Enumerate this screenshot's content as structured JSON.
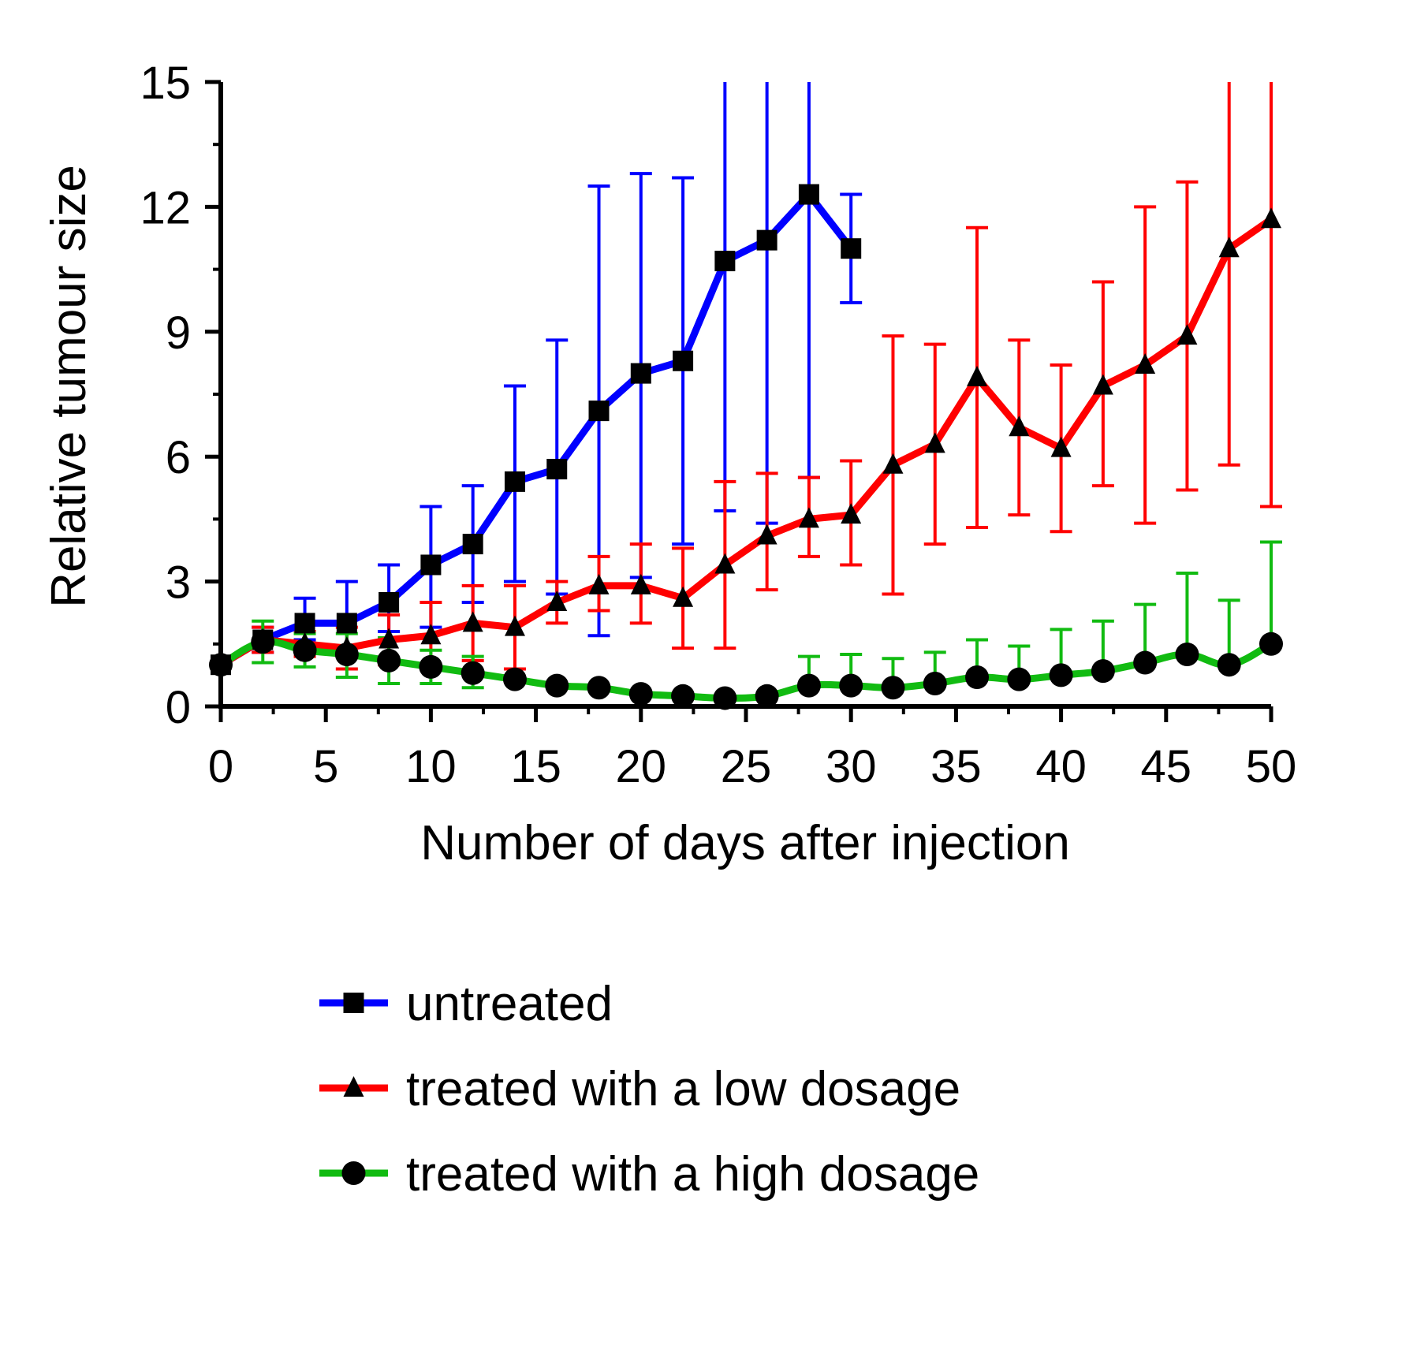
{
  "chart_data": {
    "type": "line",
    "title": "",
    "xlabel": "Number of days after injection",
    "ylabel": "Relative tumour size",
    "xlim": [
      0,
      50
    ],
    "ylim": [
      0,
      15
    ],
    "xticks": [
      0,
      5,
      10,
      15,
      20,
      25,
      30,
      35,
      40,
      45,
      50
    ],
    "yticks": [
      0,
      3,
      6,
      9,
      12,
      15
    ],
    "legend_position": "bottom",
    "series": [
      {
        "name": "untreated",
        "color": "#0000ff",
        "marker": "square",
        "x": [
          0,
          2,
          4,
          6,
          8,
          10,
          12,
          14,
          16,
          18,
          20,
          22,
          24,
          26,
          28,
          30
        ],
        "y": [
          1.0,
          1.6,
          2.0,
          2.0,
          2.5,
          3.4,
          3.9,
          5.4,
          5.7,
          7.1,
          8.0,
          8.3,
          10.7,
          11.2,
          12.3,
          11.0
        ],
        "err_low": [
          null,
          1.3,
          1.6,
          1.2,
          1.8,
          1.9,
          2.5,
          3.0,
          2.7,
          1.7,
          3.1,
          3.9,
          4.7,
          4.4,
          5.5,
          9.7
        ],
        "err_high": [
          null,
          1.9,
          2.6,
          3.0,
          3.4,
          4.8,
          5.3,
          7.7,
          8.8,
          12.5,
          12.8,
          12.7,
          15.0,
          15.0,
          15.0,
          12.3
        ]
      },
      {
        "name": "treated with a low dosage",
        "color": "#ff0000",
        "marker": "triangle",
        "x": [
          0,
          2,
          4,
          6,
          8,
          10,
          12,
          14,
          16,
          18,
          20,
          22,
          24,
          26,
          28,
          30,
          32,
          34,
          36,
          38,
          40,
          42,
          44,
          46,
          48,
          50
        ],
        "y": [
          1.0,
          1.6,
          1.5,
          1.4,
          1.6,
          1.7,
          2.0,
          1.9,
          2.5,
          2.9,
          2.9,
          2.6,
          3.4,
          4.1,
          4.5,
          4.6,
          5.8,
          6.3,
          7.9,
          6.7,
          6.2,
          7.7,
          8.2,
          8.9,
          11.0,
          11.7
        ],
        "err_low": [
          null,
          1.3,
          1.2,
          0.9,
          1.0,
          1.0,
          1.1,
          0.9,
          2.0,
          2.3,
          2.0,
          1.4,
          1.4,
          2.8,
          3.6,
          3.4,
          2.7,
          3.9,
          4.3,
          4.6,
          4.2,
          5.3,
          4.4,
          5.2,
          5.8,
          4.8
        ],
        "err_high": [
          null,
          1.9,
          1.8,
          1.9,
          2.2,
          2.5,
          2.9,
          2.9,
          3.0,
          3.6,
          3.9,
          3.8,
          5.4,
          5.6,
          5.5,
          5.9,
          8.9,
          8.7,
          11.5,
          8.8,
          8.2,
          10.2,
          12.0,
          12.6,
          15.0,
          15.0
        ]
      },
      {
        "name": "treated with a high dosage",
        "color": "#11bb11",
        "marker": "circle",
        "x": [
          0,
          2,
          4,
          6,
          8,
          10,
          12,
          14,
          16,
          18,
          20,
          22,
          24,
          26,
          28,
          30,
          32,
          34,
          36,
          38,
          40,
          42,
          44,
          46,
          48,
          50
        ],
        "y": [
          1.0,
          1.55,
          1.35,
          1.25,
          1.1,
          0.95,
          0.8,
          0.65,
          0.5,
          0.45,
          0.3,
          0.25,
          0.2,
          0.25,
          0.5,
          0.5,
          0.45,
          0.55,
          0.7,
          0.65,
          0.75,
          0.85,
          1.05,
          1.25,
          1.0,
          1.5
        ],
        "err_low": [
          null,
          1.05,
          0.95,
          0.7,
          0.55,
          0.55,
          0.45,
          null,
          null,
          null,
          null,
          null,
          null,
          null,
          null,
          null,
          null,
          null,
          null,
          null,
          null,
          null,
          null,
          null,
          null,
          null
        ],
        "err_high": [
          null,
          2.05,
          1.75,
          1.75,
          1.65,
          1.35,
          1.2,
          null,
          null,
          null,
          null,
          null,
          null,
          null,
          1.2,
          1.25,
          1.15,
          1.3,
          1.6,
          1.45,
          1.85,
          2.05,
          2.45,
          3.2,
          2.55,
          3.95
        ]
      }
    ]
  }
}
